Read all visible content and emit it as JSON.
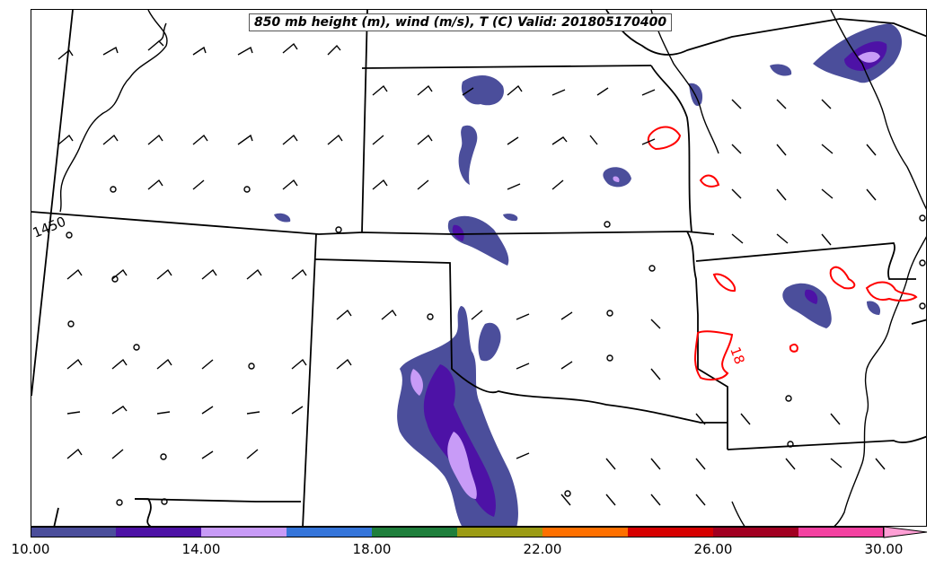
{
  "title": "850 mb height (m), wind (m/s), T (C) Valid: 201805170400",
  "contours": {
    "height_label": "1450",
    "temperature_label": "18",
    "temperature_color": "#ff0000",
    "height_color": "#000000"
  },
  "colorbar": {
    "ticks": [
      "10.00",
      "14.00",
      "18.00",
      "22.00",
      "26.00",
      "30.00"
    ],
    "colors": [
      "#4b4e9b",
      "#4d12a6",
      "#c89bf7",
      "#3575da",
      "#1f7f3c",
      "#9b9b14",
      "#fe7000",
      "#d60000",
      "#a10021",
      "#f342a1",
      "#ff9fd5"
    ]
  }
}
